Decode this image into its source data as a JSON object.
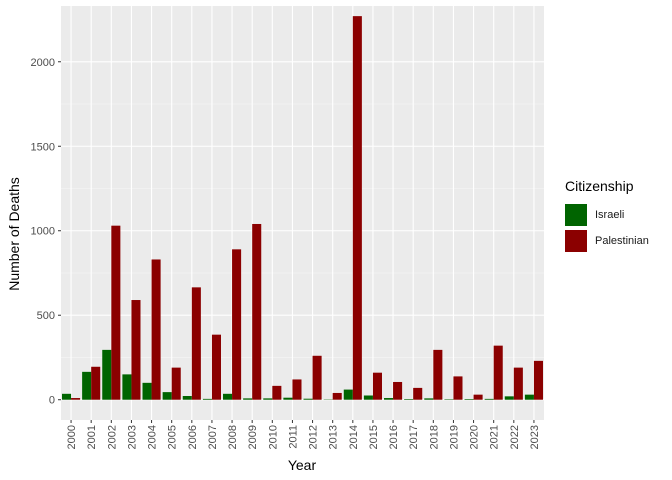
{
  "chart_data": {
    "type": "bar",
    "xlabel": "Year",
    "ylabel": "Number of Deaths",
    "ylim": [
      -120,
      2330
    ],
    "yticks": [
      0,
      500,
      1000,
      1500,
      2000
    ],
    "grid": true,
    "legend_position": "right",
    "categories": [
      "2000",
      "2001",
      "2002",
      "2003",
      "2004",
      "2005",
      "2006",
      "2007",
      "2008",
      "2009",
      "2010",
      "2011",
      "2012",
      "2013",
      "2014",
      "2015",
      "2016",
      "2017",
      "2018",
      "2019",
      "2020",
      "2021",
      "2022",
      "2023"
    ],
    "series": [
      {
        "name": "Israeli",
        "color": "#006400",
        "values": [
          35,
          165,
          295,
          150,
          100,
          45,
          22,
          5,
          35,
          8,
          8,
          12,
          6,
          2,
          60,
          25,
          10,
          4,
          8,
          3,
          4,
          5,
          20,
          30
        ]
      },
      {
        "name": "Palestinian",
        "color": "#8B0000",
        "values": [
          10,
          195,
          1030,
          590,
          830,
          190,
          665,
          385,
          890,
          1040,
          82,
          120,
          260,
          40,
          2270,
          160,
          105,
          70,
          295,
          138,
          30,
          320,
          190,
          230
        ]
      }
    ]
  },
  "legend": {
    "title": "Citizenship",
    "items": [
      {
        "label": "Israeli",
        "color": "#006400"
      },
      {
        "label": "Palestinian",
        "color": "#8B0000"
      }
    ]
  }
}
